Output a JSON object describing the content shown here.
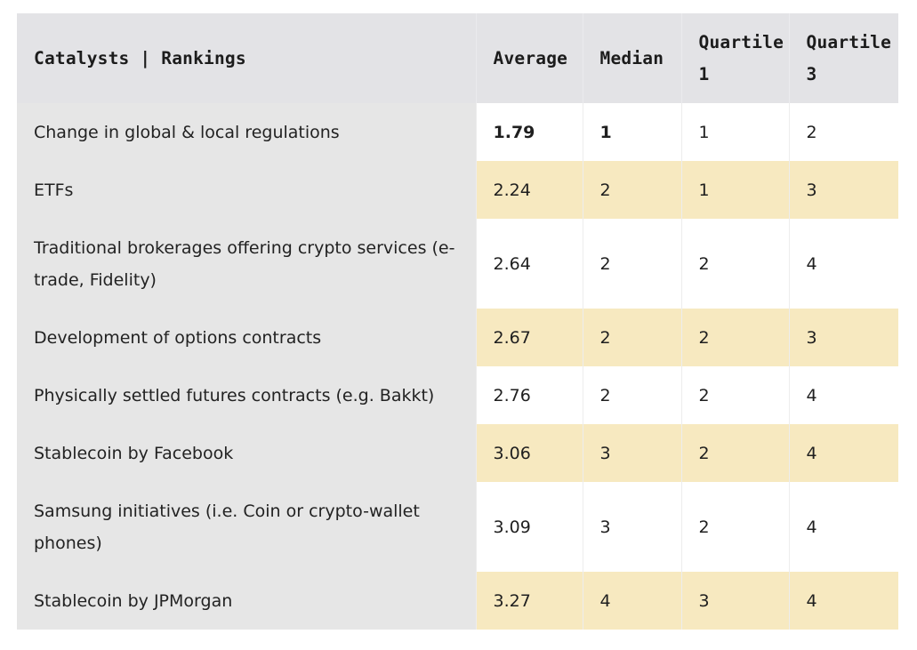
{
  "table": {
    "headers": {
      "catalysts": "Catalysts | Rankings",
      "average": "Average",
      "median": "Median",
      "q1": "Quartile 1",
      "q3": "Quartile 3"
    },
    "rows": [
      {
        "catalyst": "Change in global & local regulations",
        "average": "1.79",
        "median": "1",
        "q1": "1",
        "q3": "2"
      },
      {
        "catalyst": "ETFs",
        "average": "2.24",
        "median": "2",
        "q1": "1",
        "q3": "3"
      },
      {
        "catalyst": "Traditional brokerages offering crypto services (e-trade, Fidelity)",
        "average": "2.64",
        "median": "2",
        "q1": "2",
        "q3": "4"
      },
      {
        "catalyst": "Development of options contracts",
        "average": "2.67",
        "median": "2",
        "q1": "2",
        "q3": "3"
      },
      {
        "catalyst": "Physically settled futures contracts (e.g. Bakkt)",
        "average": "2.76",
        "median": "2",
        "q1": "2",
        "q3": "4"
      },
      {
        "catalyst": "Stablecoin by Facebook",
        "average": "3.06",
        "median": "3",
        "q1": "2",
        "q3": "4"
      },
      {
        "catalyst": "Samsung initiatives (i.e. Coin or crypto-wallet phones)",
        "average": "3.09",
        "median": "3",
        "q1": "2",
        "q3": "4"
      },
      {
        "catalyst": "Stablecoin by JPMorgan",
        "average": "3.27",
        "median": "4",
        "q1": "3",
        "q3": "4"
      }
    ]
  },
  "colors": {
    "header_bg": "#e3e3e6",
    "label_column_bg": "#e6e6e6",
    "highlight_row_bg": "#f7e9c0",
    "plain_row_bg": "#ffffff"
  }
}
